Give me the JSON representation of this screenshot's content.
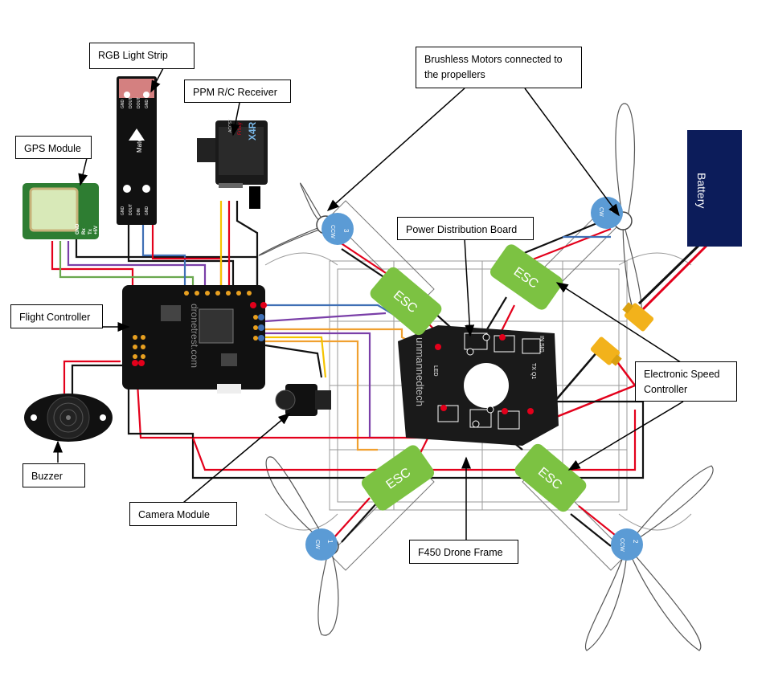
{
  "labels": {
    "rgb_strip": "RGB Light Strip",
    "ppm_receiver": "PPM R/C Receiver",
    "gps_module": "GPS Module",
    "flight_controller": "Flight Controller",
    "buzzer": "Buzzer",
    "camera_module": "Camera Module",
    "power_board": "Power Distribution Board",
    "brushless_motors": "Brushless Motors connected to the propellers",
    "esc": "Electronic Speed Controller",
    "frame": "F450 Drone Frame",
    "battery": "Battery"
  },
  "esc_text": "ESC",
  "motors": [
    {
      "num": "1",
      "dir": "CW"
    },
    {
      "num": "2",
      "dir": "CCW"
    },
    {
      "num": "3",
      "dir": "CCW"
    },
    {
      "num": "4",
      "dir": "CW"
    }
  ],
  "gps_pins": [
    "GND",
    "Rx",
    "Tx",
    "+5V"
  ],
  "rgb_pins_top": [
    "GND",
    "DOUT",
    "DOUT",
    "GND"
  ],
  "rgb_pins_bottom": [
    "GND",
    "DOUT",
    "DIN",
    "GND"
  ],
  "rgb_logo": "Matek",
  "receiver_brand": "FrSky",
  "receiver_model": "X4R",
  "receiver_sub": "ACCST",
  "fc_watermark": "dronetrest.com",
  "pdb_watermark": "unmannedtech",
  "pdb_labels": [
    "TX Q1",
    "IN SIG",
    "LED"
  ],
  "colors": {
    "esc_green": "#7cc242",
    "motor_blue": "#5b9bd5",
    "battery_navy": "#0c1c5a",
    "connector_yellow": "#f2b21b",
    "wire_red": "#e3001b",
    "wire_blue": "#3f6fb5",
    "wire_purple": "#7a3fa8",
    "wire_orange": "#f0a030",
    "wire_green": "#6aa84f",
    "wire_yellow": "#f5c400"
  }
}
